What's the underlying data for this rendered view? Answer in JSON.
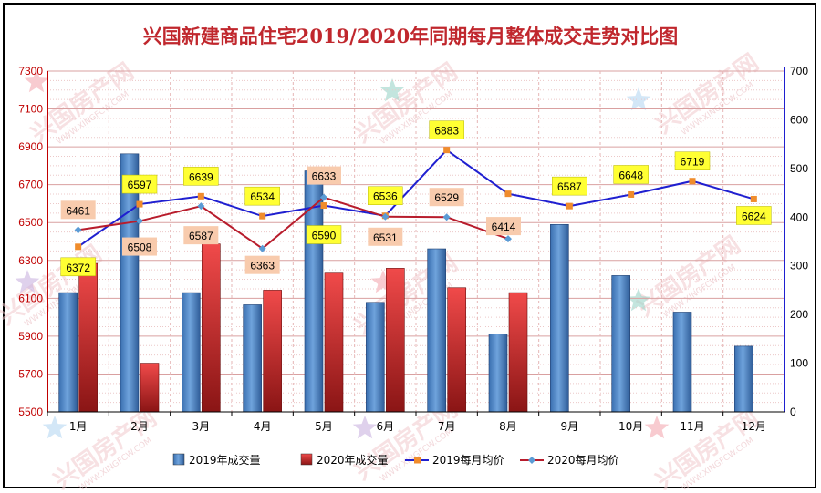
{
  "chart_data": {
    "type": "bar+line",
    "title": "兴国新建商品住宅2019/2020年同期每月整体成交走势对比图",
    "categories": [
      "1月",
      "2月",
      "3月",
      "4月",
      "5月",
      "6月",
      "7月",
      "8月",
      "9月",
      "10月",
      "11月",
      "12月"
    ],
    "y_left": {
      "min": 5500,
      "max": 7300,
      "ticks": [
        5500,
        5700,
        5900,
        6100,
        6300,
        6500,
        6700,
        6900,
        7100,
        7300
      ],
      "color": "#c00000"
    },
    "y_right": {
      "min": 0,
      "max": 700,
      "ticks": [
        0,
        100,
        200,
        300,
        400,
        500,
        600,
        700
      ]
    },
    "series": [
      {
        "name": "2019年成交量",
        "kind": "bar",
        "axis": "right",
        "color": "#4f81bd",
        "values": [
          245,
          530,
          245,
          220,
          495,
          225,
          335,
          160,
          385,
          280,
          205,
          135
        ]
      },
      {
        "name": "2020年成交量",
        "kind": "bar",
        "axis": "right",
        "color": "#e03a3a",
        "values": [
          305,
          100,
          345,
          250,
          285,
          295,
          255,
          245,
          null,
          null,
          null,
          null
        ]
      },
      {
        "name": "2019每月均价",
        "kind": "line",
        "axis": "left",
        "color": "#1f1fd0",
        "marker_color": "#f08c2c",
        "values": [
          6372,
          6597,
          6639,
          6534,
          6590,
          6536,
          6883,
          6652,
          6587,
          6648,
          6719,
          6624
        ]
      },
      {
        "name": "2020每月均价",
        "kind": "line",
        "axis": "left",
        "color": "#b81c2c",
        "marker_color": "#5b9bd5",
        "values": [
          6461,
          6508,
          6587,
          6363,
          6633,
          6531,
          6529,
          6414,
          null,
          null,
          null,
          null
        ]
      }
    ],
    "data_labels": [
      {
        "text": "6372",
        "month": 0,
        "y": 6372,
        "style": "yellow"
      },
      {
        "text": "6461",
        "month": 0,
        "y": 6461,
        "style": "peach"
      },
      {
        "text": "6597",
        "month": 1,
        "y": 6597,
        "style": "yellow"
      },
      {
        "text": "6508",
        "month": 1,
        "y": 6508,
        "style": "peach"
      },
      {
        "text": "6639",
        "month": 2,
        "y": 6639,
        "style": "yellow"
      },
      {
        "text": "6587",
        "month": 2,
        "y": 6587,
        "style": "peach"
      },
      {
        "text": "6534",
        "month": 3,
        "y": 6534,
        "style": "yellow"
      },
      {
        "text": "6363",
        "month": 3,
        "y": 6363,
        "style": "peach"
      },
      {
        "text": "6633",
        "month": 4,
        "y": 6633,
        "style": "peach"
      },
      {
        "text": "6590",
        "month": 4,
        "y": 6590,
        "style": "yellow"
      },
      {
        "text": "6536",
        "month": 5,
        "y": 6536,
        "style": "yellow"
      },
      {
        "text": "6531",
        "month": 5,
        "y": 6531,
        "style": "peach"
      },
      {
        "text": "6883",
        "month": 6,
        "y": 6883,
        "style": "yellow"
      },
      {
        "text": "6529",
        "month": 6,
        "y": 6529,
        "style": "peach"
      },
      {
        "text": "6414",
        "month": 7,
        "y": 6414,
        "style": "peach"
      },
      {
        "text": "6587",
        "month": 8,
        "y": 6587,
        "style": "yellow"
      },
      {
        "text": "6648",
        "month": 9,
        "y": 6648,
        "style": "yellow"
      },
      {
        "text": "6719",
        "month": 10,
        "y": 6719,
        "style": "yellow"
      },
      {
        "text": "6624",
        "month": 11,
        "y": 6624,
        "style": "yellow"
      }
    ],
    "legend": {
      "placement": "bottom"
    },
    "grid": true
  },
  "watermark": {
    "text": "兴国房产网",
    "subtext": "WWW.XINGFCW.COM"
  }
}
